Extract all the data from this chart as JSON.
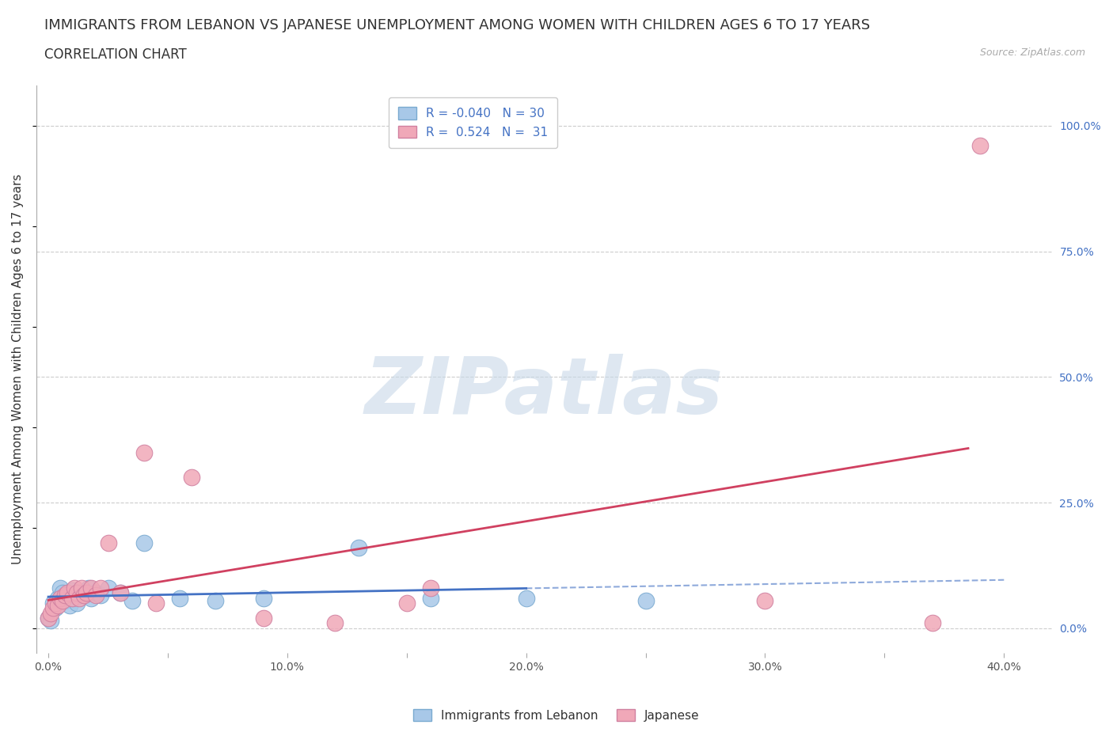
{
  "title": "IMMIGRANTS FROM LEBANON VS JAPANESE UNEMPLOYMENT AMONG WOMEN WITH CHILDREN AGES 6 TO 17 YEARS",
  "subtitle": "CORRELATION CHART",
  "source": "Source: ZipAtlas.com",
  "ylabel": "Unemployment Among Women with Children Ages 6 to 17 years",
  "xlim": [
    -0.005,
    0.42
  ],
  "ylim": [
    -0.05,
    1.08
  ],
  "xtick_positions": [
    0.0,
    0.05,
    0.1,
    0.15,
    0.2,
    0.25,
    0.3,
    0.35,
    0.4
  ],
  "xticklabels": [
    "0.0%",
    "",
    "10.0%",
    "",
    "20.0%",
    "",
    "30.0%",
    "",
    "40.0%"
  ],
  "ytick_positions": [
    0.0,
    0.25,
    0.5,
    0.75,
    1.0
  ],
  "ytick_labels": [
    "0.0%",
    "25.0%",
    "50.0%",
    "75.0%",
    "100.0%"
  ],
  "grid_color": "#cccccc",
  "background_color": "#ffffff",
  "blue_color": "#a8c8e8",
  "pink_color": "#f0a8b8",
  "blue_line_color": "#4472c4",
  "pink_line_color": "#d04060",
  "blue_x": [
    0.0,
    0.001,
    0.002,
    0.003,
    0.004,
    0.005,
    0.006,
    0.007,
    0.008,
    0.009,
    0.01,
    0.011,
    0.012,
    0.013,
    0.015,
    0.017,
    0.018,
    0.02,
    0.022,
    0.025,
    0.03,
    0.035,
    0.04,
    0.055,
    0.07,
    0.09,
    0.13,
    0.16,
    0.2,
    0.25
  ],
  "blue_y": [
    0.02,
    0.015,
    0.05,
    0.04,
    0.06,
    0.08,
    0.07,
    0.055,
    0.065,
    0.045,
    0.075,
    0.06,
    0.05,
    0.07,
    0.065,
    0.08,
    0.06,
    0.07,
    0.065,
    0.08,
    0.07,
    0.055,
    0.17,
    0.06,
    0.055,
    0.06,
    0.16,
    0.06,
    0.06,
    0.055
  ],
  "pink_x": [
    0.0,
    0.001,
    0.002,
    0.003,
    0.004,
    0.005,
    0.006,
    0.007,
    0.008,
    0.01,
    0.011,
    0.012,
    0.013,
    0.014,
    0.015,
    0.016,
    0.018,
    0.02,
    0.022,
    0.025,
    0.03,
    0.04,
    0.045,
    0.06,
    0.09,
    0.12,
    0.15,
    0.16,
    0.3,
    0.37,
    0.39
  ],
  "pink_y": [
    0.02,
    0.03,
    0.04,
    0.05,
    0.045,
    0.06,
    0.055,
    0.065,
    0.07,
    0.06,
    0.08,
    0.07,
    0.06,
    0.08,
    0.065,
    0.07,
    0.08,
    0.065,
    0.08,
    0.17,
    0.07,
    0.35,
    0.05,
    0.3,
    0.02,
    0.01,
    0.05,
    0.08,
    0.055,
    0.01,
    0.96
  ],
  "blue_R": -0.04,
  "blue_N": 30,
  "pink_R": 0.524,
  "pink_N": 31,
  "legend_label_blue": "Immigrants from Lebanon",
  "legend_label_pink": "Japanese",
  "watermark": "ZIPatlas",
  "watermark_color": "#c8d8e8",
  "title_fontsize": 13,
  "subtitle_fontsize": 12,
  "axis_label_fontsize": 11,
  "tick_fontsize": 10,
  "legend_fontsize": 11,
  "blue_line_x_solid_end": 0.2,
  "blue_line_x_end": 0.4,
  "pink_line_x_start": 0.0,
  "pink_line_x_end": 0.385
}
